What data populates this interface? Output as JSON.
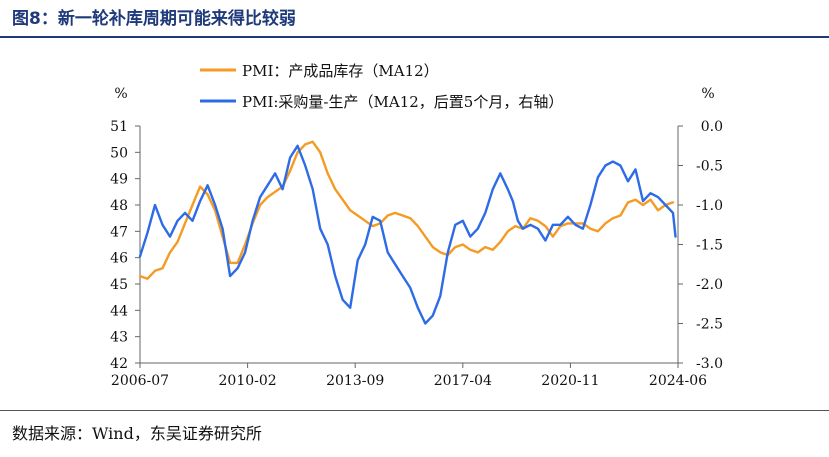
{
  "header": {
    "title": "图8：新一轮补库周期可能来得比较弱"
  },
  "footer": {
    "source": "数据来源：Wind，东吴证券研究所"
  },
  "colors": {
    "title": "#1F3A7A",
    "series_pmi_inventory": "#F59A23",
    "series_pmi_purchase_minus_production": "#2E6BE6"
  },
  "chart_data": {
    "type": "line",
    "title": "",
    "x_start": "2006-07",
    "x_end": "2024-06",
    "x_ticks": [
      "2006-07",
      "2010-02",
      "2013-09",
      "2017-04",
      "2020-11",
      "2024-06"
    ],
    "left_axis": {
      "unit": "%",
      "ylim": [
        42,
        51
      ],
      "ticks": [
        "51",
        "50",
        "49",
        "48",
        "47",
        "46",
        "45",
        "44",
        "43",
        "42"
      ]
    },
    "right_axis": {
      "unit": "%",
      "ylim": [
        -3.0,
        0.0
      ],
      "ticks": [
        "0.0",
        "-0.5",
        "-1.0",
        "-1.5",
        "-2.0",
        "-2.5",
        "-3.0"
      ]
    },
    "grid": false,
    "legend_position": "top",
    "series": [
      {
        "name": "PMI：产成品库存（MA12）",
        "axis": "left",
        "color": "#F59A23",
        "points": [
          [
            "2006-07",
            45.3
          ],
          [
            "2006-10",
            45.2
          ],
          [
            "2007-01",
            45.5
          ],
          [
            "2007-04",
            45.6
          ],
          [
            "2007-07",
            46.2
          ],
          [
            "2007-10",
            46.6
          ],
          [
            "2008-01",
            47.3
          ],
          [
            "2008-04",
            48.0
          ],
          [
            "2008-07",
            48.7
          ],
          [
            "2008-10",
            48.4
          ],
          [
            "2009-01",
            47.8
          ],
          [
            "2009-04",
            46.8
          ],
          [
            "2009-07",
            45.8
          ],
          [
            "2009-10",
            45.8
          ],
          [
            "2010-01",
            46.5
          ],
          [
            "2010-04",
            47.3
          ],
          [
            "2010-07",
            48.0
          ],
          [
            "2010-10",
            48.3
          ],
          [
            "2011-01",
            48.5
          ],
          [
            "2011-04",
            48.7
          ],
          [
            "2011-07",
            49.3
          ],
          [
            "2011-10",
            50.0
          ],
          [
            "2012-01",
            50.3
          ],
          [
            "2012-04",
            50.4
          ],
          [
            "2012-07",
            50.0
          ],
          [
            "2012-10",
            49.2
          ],
          [
            "2013-01",
            48.6
          ],
          [
            "2013-04",
            48.2
          ],
          [
            "2013-07",
            47.8
          ],
          [
            "2013-10",
            47.6
          ],
          [
            "2014-01",
            47.4
          ],
          [
            "2014-04",
            47.2
          ],
          [
            "2014-07",
            47.3
          ],
          [
            "2014-10",
            47.6
          ],
          [
            "2015-01",
            47.7
          ],
          [
            "2015-04",
            47.6
          ],
          [
            "2015-07",
            47.5
          ],
          [
            "2015-10",
            47.2
          ],
          [
            "2016-01",
            46.8
          ],
          [
            "2016-04",
            46.4
          ],
          [
            "2016-07",
            46.2
          ],
          [
            "2016-10",
            46.1
          ],
          [
            "2017-01",
            46.4
          ],
          [
            "2017-04",
            46.5
          ],
          [
            "2017-07",
            46.3
          ],
          [
            "2017-10",
            46.2
          ],
          [
            "2018-01",
            46.4
          ],
          [
            "2018-04",
            46.3
          ],
          [
            "2018-07",
            46.6
          ],
          [
            "2018-10",
            47.0
          ],
          [
            "2019-01",
            47.2
          ],
          [
            "2019-04",
            47.1
          ],
          [
            "2019-07",
            47.5
          ],
          [
            "2019-10",
            47.4
          ],
          [
            "2020-01",
            47.2
          ],
          [
            "2020-04",
            46.8
          ],
          [
            "2020-07",
            47.2
          ],
          [
            "2020-10",
            47.3
          ],
          [
            "2021-01",
            47.3
          ],
          [
            "2021-04",
            47.3
          ],
          [
            "2021-07",
            47.1
          ],
          [
            "2021-10",
            47.0
          ],
          [
            "2022-01",
            47.3
          ],
          [
            "2022-04",
            47.5
          ],
          [
            "2022-07",
            47.6
          ],
          [
            "2022-10",
            48.1
          ],
          [
            "2023-01",
            48.2
          ],
          [
            "2023-04",
            48.0
          ],
          [
            "2023-07",
            48.2
          ],
          [
            "2023-10",
            47.8
          ],
          [
            "2024-01",
            48.0
          ],
          [
            "2024-04",
            48.1
          ]
        ]
      },
      {
        "name": "PMI:采购量-生产（MA12，后置5个月，右轴）",
        "axis": "right",
        "color": "#2E6BE6",
        "points": [
          [
            "2006-07",
            -1.65
          ],
          [
            "2006-10",
            -1.35
          ],
          [
            "2007-01",
            -1.0
          ],
          [
            "2007-04",
            -1.25
          ],
          [
            "2007-07",
            -1.4
          ],
          [
            "2007-10",
            -1.2
          ],
          [
            "2008-01",
            -1.1
          ],
          [
            "2008-04",
            -1.2
          ],
          [
            "2008-07",
            -0.95
          ],
          [
            "2008-10",
            -0.75
          ],
          [
            "2009-01",
            -1.0
          ],
          [
            "2009-04",
            -1.3
          ],
          [
            "2009-07",
            -1.9
          ],
          [
            "2009-10",
            -1.8
          ],
          [
            "2010-01",
            -1.6
          ],
          [
            "2010-04",
            -1.2
          ],
          [
            "2010-07",
            -0.9
          ],
          [
            "2010-10",
            -0.75
          ],
          [
            "2011-01",
            -0.6
          ],
          [
            "2011-04",
            -0.8
          ],
          [
            "2011-07",
            -0.4
          ],
          [
            "2011-10",
            -0.25
          ],
          [
            "2012-01",
            -0.5
          ],
          [
            "2012-04",
            -0.8
          ],
          [
            "2012-07",
            -1.3
          ],
          [
            "2012-10",
            -1.5
          ],
          [
            "2013-01",
            -1.9
          ],
          [
            "2013-04",
            -2.2
          ],
          [
            "2013-07",
            -2.3
          ],
          [
            "2013-10",
            -1.7
          ],
          [
            "2014-01",
            -1.5
          ],
          [
            "2014-04",
            -1.15
          ],
          [
            "2014-07",
            -1.2
          ],
          [
            "2014-10",
            -1.6
          ],
          [
            "2015-01",
            -1.75
          ],
          [
            "2015-04",
            -1.9
          ],
          [
            "2015-07",
            -2.05
          ],
          [
            "2015-10",
            -2.3
          ],
          [
            "2016-01",
            -2.5
          ],
          [
            "2016-04",
            -2.4
          ],
          [
            "2016-07",
            -2.15
          ],
          [
            "2016-10",
            -1.6
          ],
          [
            "2017-01",
            -1.25
          ],
          [
            "2017-04",
            -1.2
          ],
          [
            "2017-07",
            -1.4
          ],
          [
            "2017-10",
            -1.3
          ],
          [
            "2018-01",
            -1.1
          ],
          [
            "2018-04",
            -0.8
          ],
          [
            "2018-07",
            -0.6
          ],
          [
            "2018-10",
            -0.8
          ],
          [
            "2018-12",
            -0.95
          ],
          [
            "2019-02",
            -1.2
          ],
          [
            "2019-04",
            -1.3
          ],
          [
            "2019-07",
            -1.25
          ],
          [
            "2019-10",
            -1.3
          ],
          [
            "2020-01",
            -1.45
          ],
          [
            "2020-04",
            -1.25
          ],
          [
            "2020-07",
            -1.25
          ],
          [
            "2020-10",
            -1.15
          ],
          [
            "2021-01",
            -1.25
          ],
          [
            "2021-04",
            -1.3
          ],
          [
            "2021-07",
            -1.0
          ],
          [
            "2021-10",
            -0.65
          ],
          [
            "2022-01",
            -0.5
          ],
          [
            "2022-04",
            -0.45
          ],
          [
            "2022-07",
            -0.5
          ],
          [
            "2022-10",
            -0.7
          ],
          [
            "2023-01",
            -0.55
          ],
          [
            "2023-04",
            -0.95
          ],
          [
            "2023-07",
            -0.85
          ],
          [
            "2023-10",
            -0.9
          ],
          [
            "2024-01",
            -1.0
          ],
          [
            "2024-04",
            -1.1
          ],
          [
            "2024-05",
            -1.4
          ]
        ]
      }
    ]
  }
}
